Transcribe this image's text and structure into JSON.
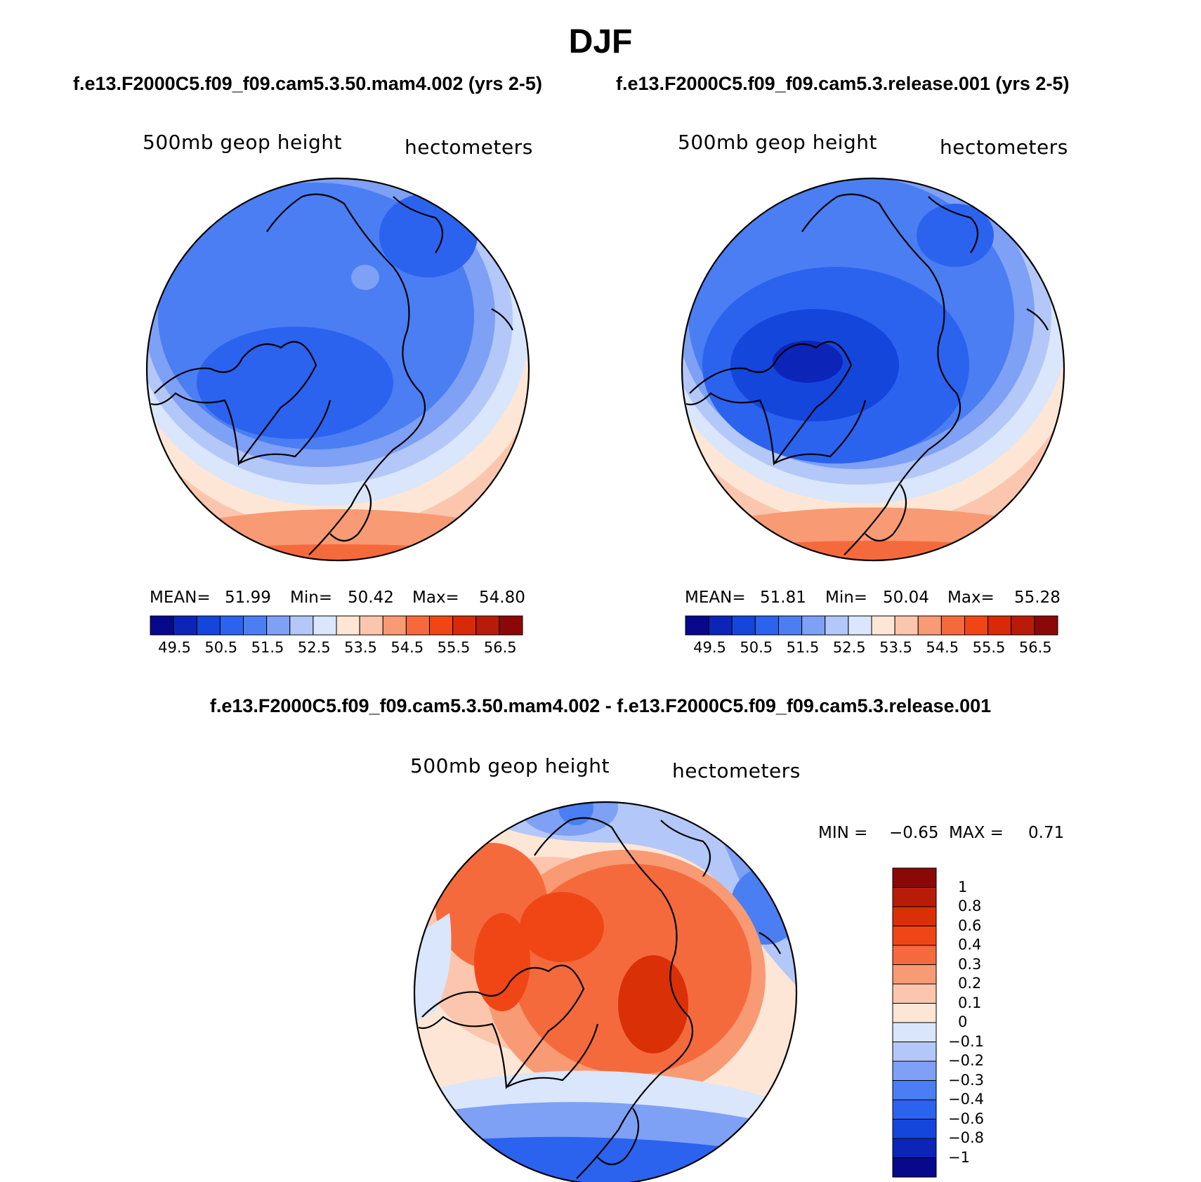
{
  "figure": {
    "title": "DJF",
    "case1_title": "f.e13.F2000C5.f09_f09.cam5.3.50.mam4.002 (yrs 2-5)",
    "case2_title": "f.e13.F2000C5.f09_f09.cam5.3.release.001 (yrs 2-5)",
    "diff_title": "f.e13.F2000C5.f09_f09.cam5.3.50.mam4.002 - f.e13.F2000C5.f09_f09.cam5.3.release.001"
  },
  "panels": [
    {
      "variable": "500mb geop height",
      "units": "hectometers",
      "mean_label": "MEAN=",
      "mean": "51.99",
      "min_label": "Min=",
      "min": "50.42",
      "max_label": "Max=",
      "max": "54.80"
    },
    {
      "variable": "500mb geop height",
      "units": "hectometers",
      "mean_label": "MEAN=",
      "mean": "51.81",
      "min_label": "Min=",
      "min": "50.04",
      "max_label": "Max=",
      "max": "55.28"
    },
    {
      "variable": "500mb geop height",
      "units": "hectometers",
      "min_label": "MIN =",
      "min": "−0.65",
      "max_label": "MAX =",
      "max": "0.71"
    }
  ],
  "colorbars": {
    "field": {
      "labels": [
        "49.5",
        "50.5",
        "51.5",
        "52.5",
        "53.5",
        "54.5",
        "55.5",
        "56.5"
      ],
      "colors": [
        "#08088c",
        "#0d24b8",
        "#1446dc",
        "#2b63ee",
        "#4a7ef2",
        "#7ea0f5",
        "#b3c7f8",
        "#d9e6fb",
        "#fde6d5",
        "#fbc6ad",
        "#f89a74",
        "#f56a3d",
        "#f04616",
        "#d92a08",
        "#b81c08",
        "#8c0808"
      ]
    },
    "diff": {
      "labels": [
        "1",
        "0.8",
        "0.6",
        "0.4",
        "0.3",
        "0.2",
        "0.1",
        "0",
        "−0.1",
        "−0.2",
        "−0.3",
        "−0.4",
        "−0.6",
        "−0.8",
        "−1"
      ],
      "colors": [
        "#8c0808",
        "#b81c08",
        "#d93008",
        "#f04616",
        "#f56a3d",
        "#f89a74",
        "#fbc6ad",
        "#fde6d5",
        "#d9e6fb",
        "#b3c7f8",
        "#7ea0f5",
        "#4a7ef2",
        "#2b63ee",
        "#1446dc",
        "#0d24b8",
        "#08088c"
      ]
    }
  }
}
